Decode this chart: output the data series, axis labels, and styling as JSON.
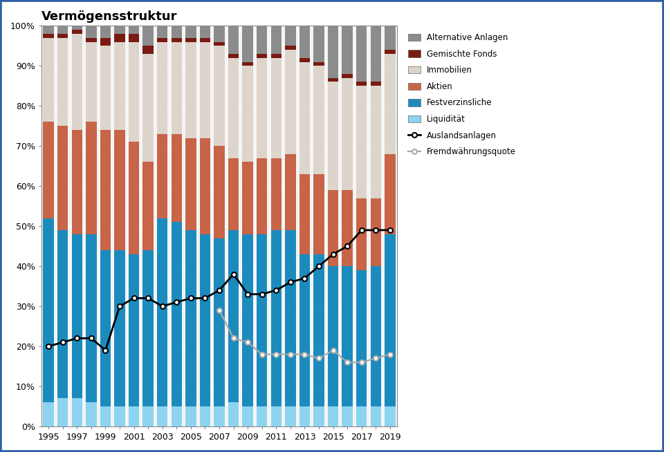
{
  "years": [
    1995,
    1996,
    1997,
    1998,
    1999,
    2000,
    2001,
    2002,
    2003,
    2004,
    2005,
    2006,
    2007,
    2008,
    2009,
    2010,
    2011,
    2012,
    2013,
    2014,
    2015,
    2016,
    2017,
    2018,
    2019
  ],
  "liquiditaet": [
    6,
    7,
    7,
    6,
    5,
    5,
    5,
    5,
    5,
    5,
    5,
    5,
    5,
    6,
    5,
    5,
    5,
    5,
    5,
    5,
    5,
    5,
    5,
    5,
    5
  ],
  "festverzinsliche": [
    46,
    42,
    41,
    42,
    39,
    39,
    38,
    39,
    47,
    46,
    44,
    43,
    42,
    43,
    43,
    43,
    44,
    44,
    38,
    38,
    35,
    35,
    34,
    35,
    43
  ],
  "aktien": [
    24,
    26,
    26,
    28,
    30,
    30,
    28,
    22,
    21,
    22,
    23,
    24,
    23,
    18,
    18,
    19,
    18,
    19,
    20,
    20,
    19,
    19,
    18,
    17,
    20
  ],
  "immobilien": [
    21,
    22,
    24,
    20,
    21,
    22,
    25,
    27,
    23,
    23,
    24,
    24,
    25,
    25,
    24,
    25,
    25,
    26,
    28,
    27,
    27,
    28,
    28,
    28,
    25
  ],
  "gemischte_fonds": [
    1,
    1,
    1,
    1,
    2,
    2,
    2,
    2,
    1,
    1,
    1,
    1,
    1,
    1,
    1,
    1,
    1,
    1,
    1,
    1,
    1,
    1,
    1,
    1,
    1
  ],
  "alternative_anlagen": [
    2,
    2,
    1,
    3,
    3,
    2,
    2,
    5,
    3,
    3,
    3,
    3,
    4,
    7,
    9,
    7,
    7,
    5,
    8,
    9,
    13,
    12,
    14,
    14,
    6
  ],
  "auslandsanlagen": [
    20,
    21,
    22,
    22,
    19,
    30,
    32,
    32,
    30,
    31,
    32,
    32,
    34,
    38,
    33,
    33,
    34,
    36,
    37,
    40,
    43,
    45,
    49,
    49,
    49
  ],
  "fremdwaehrungsquote": [
    null,
    null,
    null,
    null,
    null,
    null,
    null,
    null,
    null,
    null,
    null,
    null,
    29,
    22,
    21,
    18,
    18,
    18,
    18,
    17,
    19,
    16,
    16,
    17,
    18
  ],
  "title": "Vermögensstruktur",
  "colors": {
    "liquiditaet": "#8DD4F0",
    "festverzinsliche": "#1B8BBE",
    "aktien": "#C86448",
    "immobilien": "#DDD5CB",
    "gemischte_fonds": "#7A1A12",
    "alternative_anlagen": "#8C8C8C"
  },
  "border_color": "#2E5FA3"
}
